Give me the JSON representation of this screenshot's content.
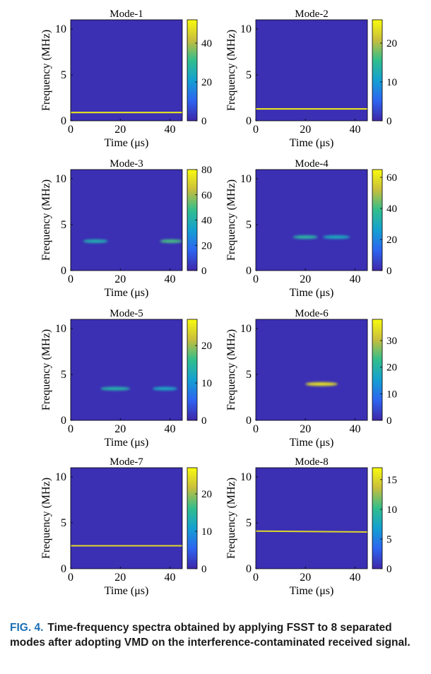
{
  "chart_data": [
    {
      "type": "heatmap",
      "title": "Mode-1",
      "xlabel": "Time (μs)",
      "ylabel": "Frequency (MHz)",
      "xlim": [
        0,
        45
      ],
      "ylim": [
        0,
        11
      ],
      "xticks": [
        0,
        20,
        40
      ],
      "yticks": [
        0,
        5,
        10
      ],
      "clim": [
        0,
        52
      ],
      "cticks": [
        0,
        20,
        40
      ],
      "ridges": [
        {
          "freq_start": 0.9,
          "freq_end": 0.9,
          "t_start": 0,
          "t_end": 45,
          "peak": 50,
          "style": "line"
        }
      ]
    },
    {
      "type": "heatmap",
      "title": "Mode-2",
      "xlabel": "Time (μs)",
      "ylabel": "Frequency (MHz)",
      "xlim": [
        0,
        45
      ],
      "ylim": [
        0,
        11
      ],
      "xticks": [
        0,
        20,
        40
      ],
      "yticks": [
        0,
        5,
        10
      ],
      "clim": [
        0,
        26
      ],
      "cticks": [
        0,
        10,
        20
      ],
      "ridges": [
        {
          "freq_start": 1.3,
          "freq_end": 1.3,
          "t_start": 0,
          "t_end": 45,
          "peak": 25,
          "style": "line"
        }
      ]
    },
    {
      "type": "heatmap",
      "title": "Mode-3",
      "xlabel": "Time (μs)",
      "ylabel": "Frequency (MHz)",
      "xlim": [
        0,
        45
      ],
      "ylim": [
        0,
        11
      ],
      "xticks": [
        0,
        20,
        40
      ],
      "yticks": [
        0,
        5,
        10
      ],
      "clim": [
        0,
        80
      ],
      "cticks": [
        0,
        20,
        40,
        60,
        80
      ],
      "ridges": [
        {
          "freq_start": 3.2,
          "freq_end": 3.2,
          "t_start": 5,
          "t_end": 15,
          "peak": 40,
          "style": "blob"
        },
        {
          "freq_start": 3.2,
          "freq_end": 3.2,
          "t_start": 36,
          "t_end": 45,
          "peak": 50,
          "style": "blob"
        }
      ]
    },
    {
      "type": "heatmap",
      "title": "Mode-4",
      "xlabel": "Time (μs)",
      "ylabel": "Frequency (MHz)",
      "xlim": [
        0,
        45
      ],
      "ylim": [
        0,
        11
      ],
      "xticks": [
        0,
        20,
        40
      ],
      "yticks": [
        0,
        5,
        10
      ],
      "clim": [
        0,
        65
      ],
      "cticks": [
        0,
        20,
        40,
        60
      ],
      "ridges": [
        {
          "freq_start": 3.6,
          "freq_end": 3.7,
          "t_start": 15,
          "t_end": 25,
          "peak": 35,
          "style": "blob"
        },
        {
          "freq_start": 3.7,
          "freq_end": 3.6,
          "t_start": 27,
          "t_end": 38,
          "peak": 30,
          "style": "blob"
        }
      ]
    },
    {
      "type": "heatmap",
      "title": "Mode-5",
      "xlabel": "Time (μs)",
      "ylabel": "Frequency (MHz)",
      "xlim": [
        0,
        45
      ],
      "ylim": [
        0,
        11
      ],
      "xticks": [
        0,
        20,
        40
      ],
      "yticks": [
        0,
        5,
        10
      ],
      "clim": [
        0,
        27
      ],
      "cticks": [
        0,
        10,
        20
      ],
      "ridges": [
        {
          "freq_start": 3.4,
          "freq_end": 3.5,
          "t_start": 12,
          "t_end": 24,
          "peak": 14,
          "style": "blob"
        },
        {
          "freq_start": 3.5,
          "freq_end": 3.4,
          "t_start": 33,
          "t_end": 43,
          "peak": 12,
          "style": "blob"
        }
      ]
    },
    {
      "type": "heatmap",
      "title": "Mode-6",
      "xlabel": "Time (μs)",
      "ylabel": "Frequency (MHz)",
      "xlim": [
        0,
        45
      ],
      "ylim": [
        0,
        11
      ],
      "xticks": [
        0,
        20,
        40
      ],
      "yticks": [
        0,
        5,
        10
      ],
      "clim": [
        0,
        38
      ],
      "cticks": [
        0,
        10,
        20,
        30
      ],
      "ridges": [
        {
          "freq_start": 3.9,
          "freq_end": 4.0,
          "t_start": 20,
          "t_end": 33,
          "peak": 35,
          "style": "blob"
        }
      ]
    },
    {
      "type": "heatmap",
      "title": "Mode-7",
      "xlabel": "Time (μs)",
      "ylabel": "Frequency (MHz)",
      "xlim": [
        0,
        45
      ],
      "ylim": [
        0,
        11
      ],
      "xticks": [
        0,
        20,
        40
      ],
      "yticks": [
        0,
        5,
        10
      ],
      "clim": [
        0,
        27
      ],
      "cticks": [
        0,
        10,
        20
      ],
      "ridges": [
        {
          "freq_start": 2.5,
          "freq_end": 2.5,
          "t_start": 0,
          "t_end": 45,
          "peak": 24,
          "style": "line"
        }
      ]
    },
    {
      "type": "heatmap",
      "title": "Mode-8",
      "xlabel": "Time (μs)",
      "ylabel": "Frequency (MHz)",
      "xlim": [
        0,
        45
      ],
      "ylim": [
        0,
        11
      ],
      "xticks": [
        0,
        20,
        40
      ],
      "yticks": [
        0,
        5,
        10
      ],
      "clim": [
        0,
        17
      ],
      "cticks": [
        0,
        5,
        10,
        15
      ],
      "ridges": [
        {
          "freq_start": 4.1,
          "freq_end": 4.0,
          "t_start": 0,
          "t_end": 45,
          "peak": 15,
          "style": "line"
        }
      ]
    }
  ],
  "colors": {
    "background": "#3a2da8",
    "ridge": "#f5e63a",
    "accent": "#1a6fb5"
  },
  "caption": {
    "label": "FIG. 4.",
    "text": "Time-frequency spectra obtained by applying FSST to 8 separated modes after adopting VMD on the interference-contaminated received signal."
  }
}
